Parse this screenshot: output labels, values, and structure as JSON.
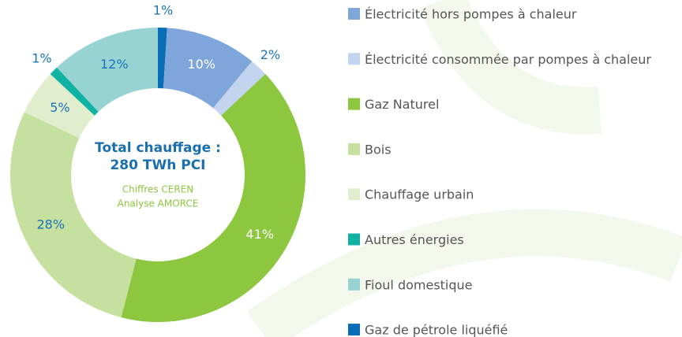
{
  "chart_data": {
    "type": "pie",
    "categories": [
      "Électricité hors pompes à chaleur",
      "Électricité consommée par pompes à chaleur",
      "Gaz Naturel",
      "Bois",
      "Chauffage urbain",
      "Autres énergies",
      "Fioul domestique",
      "Gaz de pétrole liquéfié"
    ],
    "values": [
      10,
      2,
      41,
      28,
      5,
      1,
      12,
      1
    ],
    "value_labels": [
      "10%",
      "2%",
      "41%",
      "28%",
      "5%",
      "1%",
      "12%",
      "1%"
    ],
    "colors": [
      "#7fa6da",
      "#c3d4ee",
      "#8dc63f",
      "#c6e0a0",
      "#e1eecd",
      "#10b3a3",
      "#97d3d3",
      "#0a6cb6"
    ],
    "annotations": [
      "Total chauffage :",
      "280 TWh PCI",
      "Chiffres CEREN",
      "Analyse AMORCE"
    ]
  }
}
